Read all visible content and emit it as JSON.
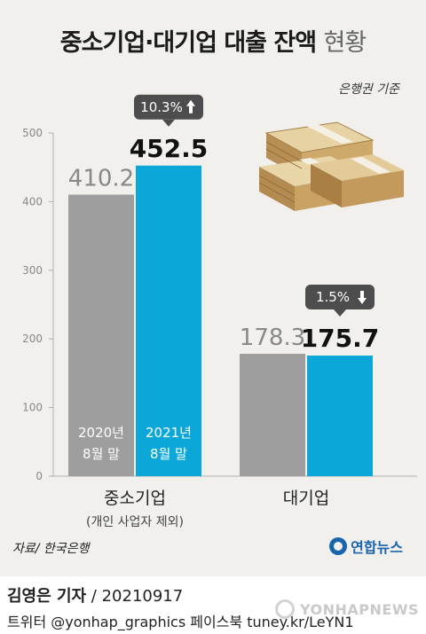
{
  "title": {
    "main": "중소기업·대기업 대출 잔액",
    "suffix": "현황"
  },
  "basis_note": "은행권 기준",
  "chart_data": {
    "type": "bar",
    "categories": [
      "중소기업",
      "대기업"
    ],
    "category_subtitles": [
      "(개인 사업자 제외)",
      ""
    ],
    "series": [
      {
        "name": "2020년 8월 말",
        "values": [
          410.2,
          178.3
        ],
        "color": "#9e9e9e"
      },
      {
        "name": "2021년 8월 말",
        "values": [
          452.5,
          175.7
        ],
        "color": "#0aa7d8"
      }
    ],
    "series_labels_on_bars": [
      [
        "2020년",
        "8월 말"
      ],
      [
        "2021년",
        "8월 말"
      ]
    ],
    "value_labels": [
      [
        "410.2",
        "452.5"
      ],
      [
        "178.3",
        "175.7"
      ]
    ],
    "changes": [
      {
        "text": "10.3%",
        "direction": "up"
      },
      {
        "text": "1.5%",
        "direction": "down"
      }
    ],
    "yticks": [
      "0",
      "100",
      "200",
      "300",
      "400",
      "500"
    ],
    "ylim": [
      0,
      520
    ],
    "grid": false,
    "colors": {
      "old": "#9e9e9e",
      "new": "#0aa7d8",
      "badge": "#4d4d4d",
      "background": "#f1f0ec"
    }
  },
  "source": "자료/ 한국은행",
  "logo": {
    "text": "연합뉴스",
    "color": "#1a64ad"
  },
  "credit": {
    "reporter": "김영은 기자",
    "date": " / 20210917"
  },
  "social": {
    "twitter": "트위터 @yonhap_graphics  페이스북 tuney.kr/LeYN1"
  },
  "watermark": "YONHAPNEWS"
}
